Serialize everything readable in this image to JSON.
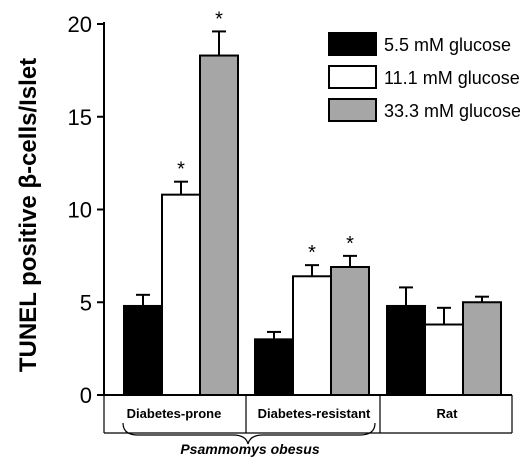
{
  "chart_data": {
    "type": "bar",
    "ylabel": "TUNEL positive β-cells/Islet",
    "ylim": [
      0,
      20
    ],
    "yticks": [
      "0",
      "5",
      "10",
      "15",
      "20"
    ],
    "categories": [
      "Diabetes-prone",
      "Diabetes-resistant",
      "Rat"
    ],
    "group_caption": "Psammomys obesus",
    "annotation_symbol": "*",
    "series": [
      {
        "name": "5.5   mM glucose",
        "color": "#000000",
        "values": [
          4.8,
          3.0,
          4.8
        ],
        "errors": [
          0.6,
          0.4,
          1.0
        ],
        "significant": [
          false,
          false,
          false
        ]
      },
      {
        "name": "11.1 mM glucose",
        "color": "#ffffff",
        "values": [
          10.8,
          6.4,
          3.8
        ],
        "errors": [
          0.7,
          0.6,
          0.9
        ],
        "significant": [
          true,
          true,
          false
        ]
      },
      {
        "name": "33.3 mM glucose",
        "color": "#a6a6a6",
        "values": [
          18.3,
          6.9,
          5.0
        ],
        "errors": [
          1.3,
          0.6,
          0.3
        ],
        "significant": [
          true,
          true,
          false
        ]
      }
    ],
    "legend_position": "top-right",
    "grid": false
  }
}
